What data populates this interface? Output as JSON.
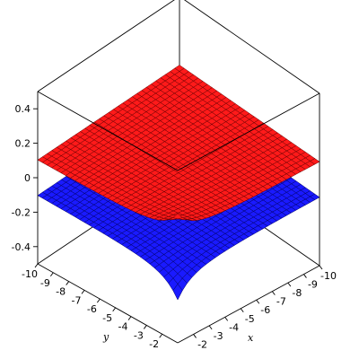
{
  "chart_data": {
    "type": "surface",
    "title": "",
    "xlabel": "x",
    "ylabel": "y",
    "zlabel": "",
    "xlim": [
      -10,
      -1
    ],
    "ylim": [
      -10,
      -1
    ],
    "zlim": [
      -0.5,
      0.5
    ],
    "x_ticks": [
      "-10",
      "-9",
      "-8",
      "-7",
      "-6",
      "-5",
      "-4",
      "-3",
      "-2"
    ],
    "y_ticks": [
      "-10",
      "-9",
      "-8",
      "-7",
      "-6",
      "-5",
      "-4",
      "-3",
      "-2"
    ],
    "z_ticks": [
      "0.4",
      "0.2",
      "0",
      "-0.2",
      "-0.4"
    ],
    "grid": false,
    "series": [
      {
        "color": "#ff0000",
        "description": "upper sheet, near 0.1 at far corners, rising to about 0.5 at the back corner"
      },
      {
        "color": "#0000ff",
        "description": "lower sheet, near -0.1 at far corners, dropping to -0.5 at the front corner"
      }
    ]
  }
}
